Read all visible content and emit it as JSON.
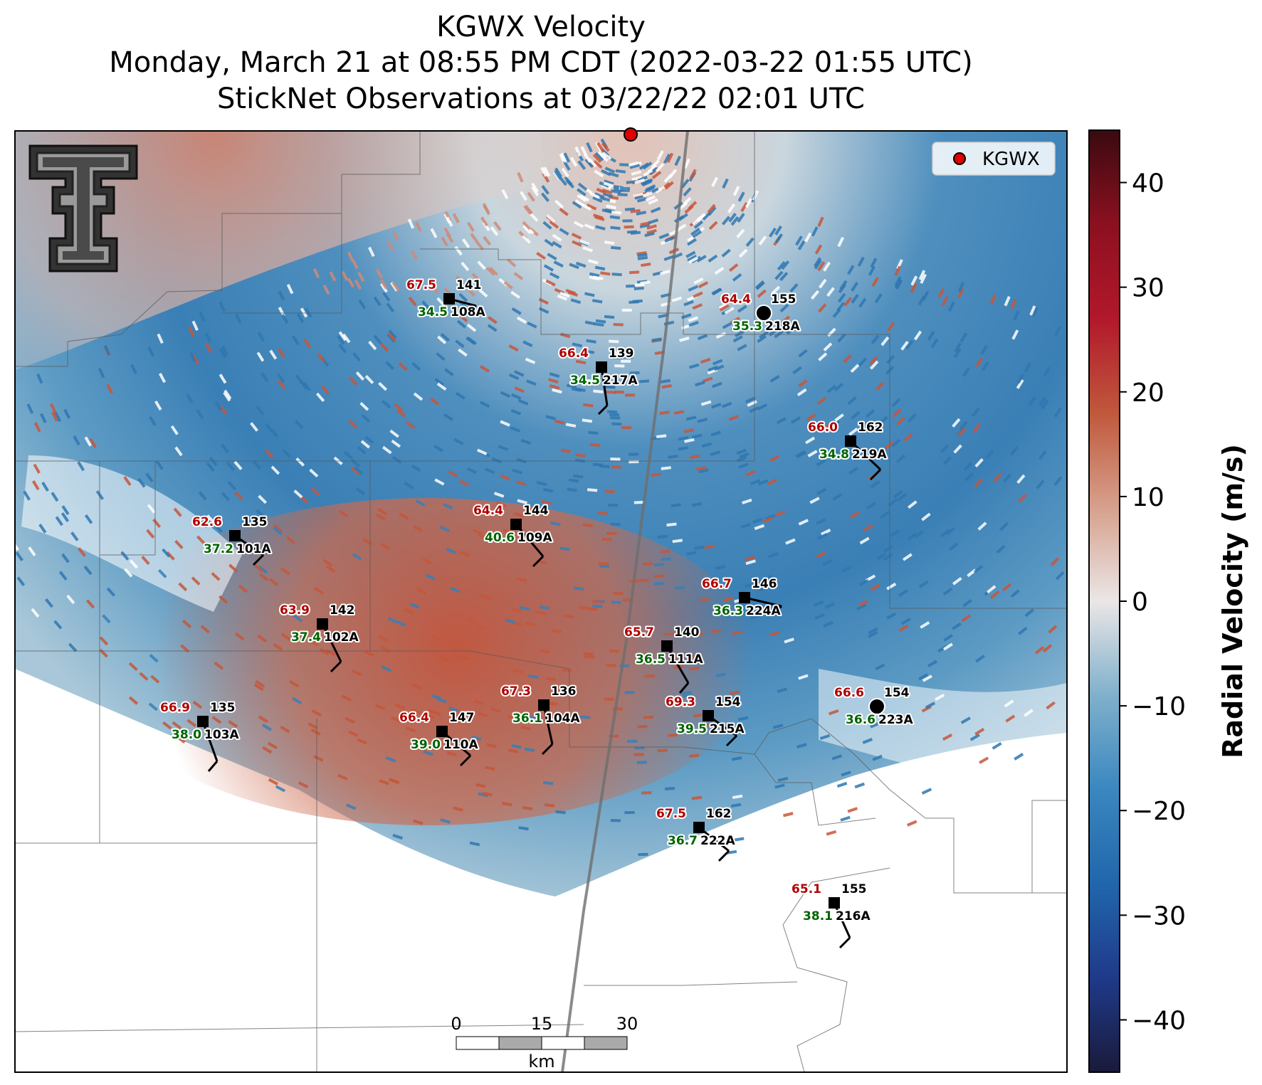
{
  "title": {
    "line1": "KGWX Velocity",
    "line2": "Monday, March 21 at 08:55 PM CDT (2022-03-22 01:55 UTC)",
    "line3": "StickNet Observations at 03/22/22 02:01 UTC"
  },
  "legend": {
    "label": "KGWX",
    "marker_color": "#e00000"
  },
  "colorbar": {
    "label": "Radial Velocity (m/s)",
    "vmin": -45,
    "vmax": 45,
    "ticks": [
      40,
      30,
      20,
      10,
      0,
      -10,
      -20,
      -30,
      -40
    ],
    "tick_labels": [
      "40",
      "30",
      "20",
      "10",
      "0",
      "−10",
      "−20",
      "−30",
      "−40"
    ],
    "colors": [
      "#1a1a3a",
      "#1f3a8a",
      "#2166ac",
      "#3a87bf",
      "#7fb0cc",
      "#ebe6e6",
      "#d6a08c",
      "#c0583c",
      "#b2182b",
      "#8c1020",
      "#3a0a10"
    ]
  },
  "scale_bar": {
    "ticks": [
      "0",
      "15",
      "30"
    ],
    "unit": "km"
  },
  "logo": {
    "name": "texas-tech-double-t-logo"
  },
  "radar_site": {
    "name": "KGWX",
    "color": "#e00000"
  },
  "stations": [
    {
      "id": "108A",
      "temp": "67.5",
      "dew": "34.5",
      "pressure": "141",
      "marker": "square"
    },
    {
      "id": "218A",
      "temp": "64.4",
      "dew": "35.3",
      "pressure": "155",
      "marker": "circle"
    },
    {
      "id": "217A",
      "temp": "66.4",
      "dew": "34.5",
      "pressure": "139",
      "marker": "square"
    },
    {
      "id": "219A",
      "temp": "66.0",
      "dew": "34.8",
      "pressure": "162",
      "marker": "square"
    },
    {
      "id": "101A",
      "temp": "62.6",
      "dew": "37.2",
      "pressure": "135",
      "marker": "square"
    },
    {
      "id": "109A",
      "temp": "64.4",
      "dew": "40.6",
      "pressure": "144",
      "marker": "square"
    },
    {
      "id": "224A",
      "temp": "66.7",
      "dew": "36.3",
      "pressure": "146",
      "marker": "square"
    },
    {
      "id": "102A",
      "temp": "63.9",
      "dew": "37.4",
      "pressure": "142",
      "marker": "square"
    },
    {
      "id": "111A",
      "temp": "65.7",
      "dew": "36.5",
      "pressure": "140",
      "marker": "square"
    },
    {
      "id": "104A",
      "temp": "67.3",
      "dew": "36.1",
      "pressure": "136",
      "marker": "square"
    },
    {
      "id": "215A",
      "temp": "69.3",
      "dew": "39.5",
      "pressure": "154",
      "marker": "square"
    },
    {
      "id": "223A",
      "temp": "66.6",
      "dew": "36.6",
      "pressure": "154",
      "marker": "circle"
    },
    {
      "id": "103A",
      "temp": "66.9",
      "dew": "38.0",
      "pressure": "135",
      "marker": "square"
    },
    {
      "id": "110A",
      "temp": "66.4",
      "dew": "39.0",
      "pressure": "147",
      "marker": "square"
    },
    {
      "id": "222A",
      "temp": "67.5",
      "dew": "36.7",
      "pressure": "162",
      "marker": "square"
    },
    {
      "id": "216A",
      "temp": "65.1",
      "dew": "38.1",
      "pressure": "155",
      "marker": "square"
    }
  ]
}
